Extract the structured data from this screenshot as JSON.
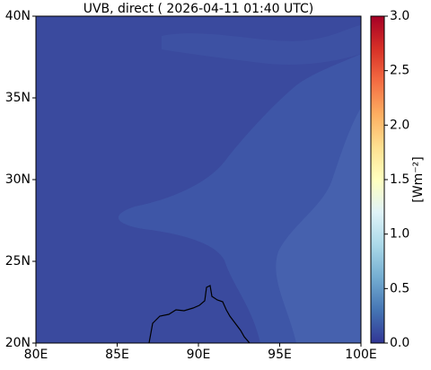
{
  "map": {
    "title": "UVB, direct ( 2026-04-11 01:40 UTC)",
    "xlim": [
      80,
      100
    ],
    "ylim": [
      20,
      40
    ],
    "xticks": [
      {
        "value": 80,
        "label": "80E"
      },
      {
        "value": 85,
        "label": "85E"
      },
      {
        "value": 90,
        "label": "90E"
      },
      {
        "value": 95,
        "label": "95E"
      },
      {
        "value": 100,
        "label": "100E"
      }
    ],
    "yticks": [
      {
        "value": 20,
        "label": "20N"
      },
      {
        "value": 25,
        "label": "25N"
      },
      {
        "value": 30,
        "label": "30N"
      },
      {
        "value": 35,
        "label": "35N"
      },
      {
        "value": 40,
        "label": "40N"
      }
    ],
    "colorbar": {
      "label": "[Wm⁻²]",
      "lim": [
        0,
        3
      ],
      "ticks": [
        {
          "value": 0,
          "label": "0.0"
        },
        {
          "value": 0.5,
          "label": "0.5"
        },
        {
          "value": 1,
          "label": "1.0"
        },
        {
          "value": 1.5,
          "label": "1.5"
        },
        {
          "value": 2,
          "label": "2.0"
        },
        {
          "value": 2.5,
          "label": "2.5"
        },
        {
          "value": 3,
          "label": "3.0"
        }
      ],
      "colors": [
        "#313695",
        "#4575b4",
        "#74add1",
        "#abd9e9",
        "#e0f3f8",
        "#ffffbf",
        "#fee090",
        "#fdae61",
        "#f46d43",
        "#d73027",
        "#a50026"
      ]
    }
  }
}
